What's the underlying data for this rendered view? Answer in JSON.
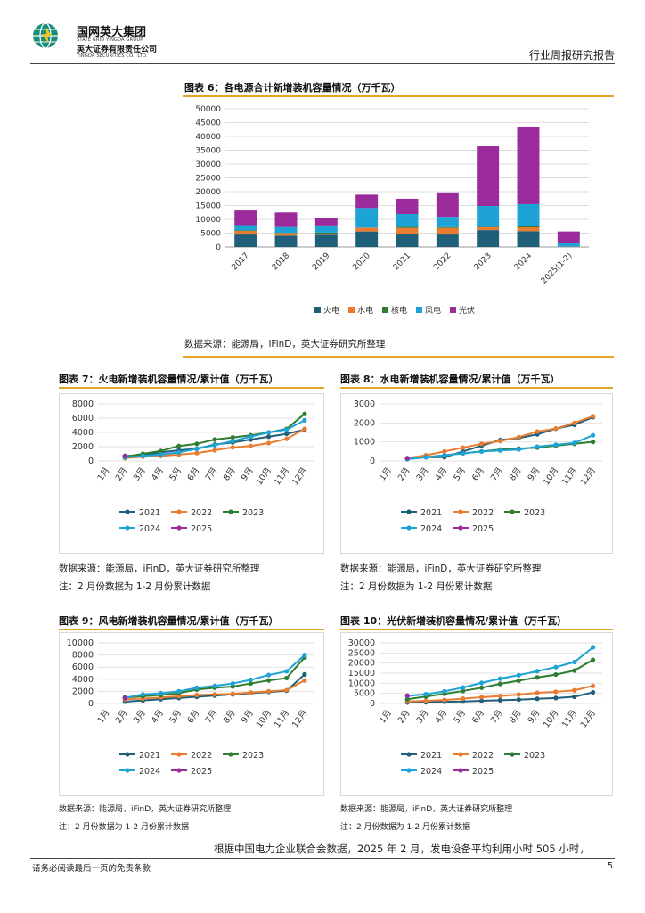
{
  "header": {
    "logo_cn": "国网英大集团",
    "logo_en": "STATE GRID YINGDA GROUP",
    "company_cn": "英大证券有限责任公司",
    "company_en": "YINGDA SECURITIES CO., LTD.",
    "report_type": "行业周报研究报告"
  },
  "figure6": {
    "title": "图表 6：各电源合计新增装机容量情况（万千瓦）",
    "source": "数据来源：能源局，iFinD，英大证券研究所整理"
  },
  "figure7": {
    "title": "图表 7：火电新增装机容量情况/累计值（万千瓦）",
    "source": "数据来源：能源局，iFinD，英大证券研究所整理",
    "note": "注：2 月份数据为 1-2 月份累计数据"
  },
  "figure8": {
    "title": "图表 8：水电新增装机容量情况/累计值（万千瓦）",
    "source": "数据来源：能源局，iFinD，英大证券研究所整理",
    "note": "注：2 月份数据为 1-2 月份累计数据"
  },
  "figure9": {
    "title": "图表 9：风电新增装机容量情况/累计值（万千瓦）",
    "source": "数据来源：能源局，iFinD，英大证券研究所整理",
    "note": "注：2 月份数据为 1-2 月份累计数据"
  },
  "figure10": {
    "title": "图表 10：光伏新增装机容量情况/累计值（万千瓦）",
    "source": "数据来源：能源局，iFinD，英大证券研究所整理",
    "note": "注：2 月份数据为 1-2 月份累计数据"
  },
  "body_text": "根据中国电力企业联合会数据，2025 年 2 月，发电设备平均利用小时 505 小时，",
  "footer": {
    "disclaimer": "请务必阅读最后一页的免责条款",
    "page_number": "5"
  },
  "chart_data": [
    {
      "id": "fig6",
      "type": "bar",
      "stacked": true,
      "categories": [
        "2017",
        "2018",
        "2019",
        "2020",
        "2021",
        "2022",
        "2023",
        "2024",
        "2025(1-2)"
      ],
      "series": [
        {
          "name": "火电",
          "color": "#1f5f7a",
          "values": [
            4500,
            4100,
            4400,
            5600,
            4600,
            4500,
            6100,
            5700,
            0
          ]
        },
        {
          "name": "水电",
          "color": "#e97c30",
          "values": [
            1300,
            900,
            400,
            1300,
            2300,
            2400,
            1000,
            1400,
            100
          ]
        },
        {
          "name": "核电",
          "color": "#2e7d32",
          "values": [
            200,
            90,
            400,
            110,
            340,
            230,
            140,
            400,
            0
          ]
        },
        {
          "name": "风电",
          "color": "#1ea3d6",
          "values": [
            1900,
            2100,
            2600,
            7100,
            4700,
            3800,
            7600,
            8000,
            1500
          ]
        },
        {
          "name": "光伏",
          "color": "#9b2b9b",
          "values": [
            5300,
            5300,
            2700,
            4800,
            5500,
            8800,
            21600,
            27800,
            4000
          ]
        }
      ],
      "ylim": [
        0,
        50000
      ],
      "yticks": [
        0,
        5000,
        10000,
        15000,
        20000,
        25000,
        30000,
        35000,
        40000,
        45000,
        50000
      ]
    },
    {
      "id": "fig7",
      "type": "line",
      "categories": [
        "1月",
        "2月",
        "3月",
        "4月",
        "5月",
        "6月",
        "7月",
        "8月",
        "9月",
        "10月",
        "11月",
        "12月"
      ],
      "ylim": [
        0,
        8000
      ],
      "yticks": [
        0,
        2000,
        4000,
        6000,
        8000
      ],
      "series": [
        {
          "name": "2021",
          "color": "#1f5f7a",
          "values": [
            null,
            700,
            800,
            1200,
            1500,
            1700,
            2300,
            2600,
            3000,
            3400,
            3800,
            4400
          ]
        },
        {
          "name": "2022",
          "color": "#e97c30",
          "values": [
            null,
            400,
            600,
            700,
            900,
            1100,
            1500,
            1900,
            2100,
            2500,
            3100,
            4500
          ]
        },
        {
          "name": "2023",
          "color": "#2e7d32",
          "values": [
            null,
            600,
            1000,
            1400,
            2100,
            2400,
            3000,
            3300,
            3600,
            4000,
            4500,
            6600
          ]
        },
        {
          "name": "2024",
          "color": "#1ea3d6",
          "values": [
            null,
            500,
            700,
            900,
            1200,
            1700,
            2200,
            2800,
            3400,
            4000,
            4400,
            5700
          ]
        },
        {
          "name": "2025",
          "color": "#9b2b9b",
          "values": [
            null,
            700,
            null,
            null,
            null,
            null,
            null,
            null,
            null,
            null,
            null,
            null
          ]
        }
      ]
    },
    {
      "id": "fig8",
      "type": "line",
      "categories": [
        "1月",
        "2月",
        "3月",
        "4月",
        "5月",
        "6月",
        "7月",
        "8月",
        "9月",
        "10月",
        "11月",
        "12月"
      ],
      "ylim": [
        0,
        3000
      ],
      "yticks": [
        0,
        1000,
        2000,
        3000
      ],
      "series": [
        {
          "name": "2021",
          "color": "#1f5f7a",
          "values": [
            null,
            100,
            200,
            200,
            500,
            800,
            1100,
            1200,
            1400,
            1700,
            1900,
            2300
          ]
        },
        {
          "name": "2022",
          "color": "#e97c30",
          "values": [
            null,
            150,
            300,
            500,
            700,
            900,
            1050,
            1250,
            1550,
            1700,
            2000,
            2350
          ]
        },
        {
          "name": "2023",
          "color": "#2e7d32",
          "values": [
            null,
            100,
            200,
            300,
            400,
            500,
            600,
            650,
            700,
            800,
            900,
            1000
          ]
        },
        {
          "name": "2024",
          "color": "#1ea3d6",
          "values": [
            null,
            100,
            200,
            300,
            400,
            500,
            550,
            600,
            750,
            850,
            950,
            1350
          ]
        },
        {
          "name": "2025",
          "color": "#9b2b9b",
          "values": [
            null,
            150,
            null,
            null,
            null,
            null,
            null,
            null,
            null,
            null,
            null,
            null
          ]
        }
      ]
    },
    {
      "id": "fig9",
      "type": "line",
      "categories": [
        "1月",
        "2月",
        "3月",
        "4月",
        "5月",
        "6月",
        "7月",
        "8月",
        "9月",
        "10月",
        "11月",
        "12月"
      ],
      "ylim": [
        0,
        10000
      ],
      "yticks": [
        0,
        2000,
        4000,
        6000,
        8000,
        10000
      ],
      "series": [
        {
          "name": "2021",
          "color": "#1f5f7a",
          "values": [
            null,
            300,
            500,
            700,
            900,
            1100,
            1300,
            1500,
            1700,
            1900,
            2100,
            4800
          ]
        },
        {
          "name": "2022",
          "color": "#e97c30",
          "values": [
            null,
            700,
            800,
            1000,
            1200,
            1400,
            1500,
            1600,
            1800,
            2000,
            2200,
            3800
          ]
        },
        {
          "name": "2023",
          "color": "#2e7d32",
          "values": [
            null,
            1000,
            1200,
            1400,
            1700,
            2300,
            2600,
            2800,
            3300,
            3800,
            4200,
            7600
          ]
        },
        {
          "name": "2024",
          "color": "#1ea3d6",
          "values": [
            null,
            900,
            1500,
            1700,
            2000,
            2600,
            2900,
            3300,
            3900,
            4700,
            5300,
            8000
          ]
        },
        {
          "name": "2025",
          "color": "#9b2b9b",
          "values": [
            null,
            900,
            null,
            null,
            null,
            null,
            null,
            null,
            null,
            null,
            null,
            null
          ]
        }
      ]
    },
    {
      "id": "fig10",
      "type": "line",
      "categories": [
        "1月",
        "2月",
        "3月",
        "4月",
        "5月",
        "6月",
        "7月",
        "8月",
        "9月",
        "10月",
        "11月",
        "12月"
      ],
      "ylim": [
        0,
        30000
      ],
      "yticks": [
        0,
        5000,
        10000,
        15000,
        20000,
        25000,
        30000
      ],
      "series": [
        {
          "name": "2021",
          "color": "#1f5f7a",
          "values": [
            null,
            500,
            600,
            800,
            1000,
            1300,
            1600,
            1900,
            2300,
            2700,
            3300,
            5500
          ]
        },
        {
          "name": "2022",
          "color": "#e97c30",
          "values": [
            null,
            1000,
            1300,
            1700,
            2400,
            3100,
            3700,
            4400,
            5300,
            5800,
            6500,
            8700
          ]
        },
        {
          "name": "2023",
          "color": "#2e7d32",
          "values": [
            null,
            2100,
            3400,
            4800,
            6200,
            7800,
            9700,
            11300,
            12900,
            14300,
            16300,
            21600
          ]
        },
        {
          "name": "2024",
          "color": "#1ea3d6",
          "values": [
            null,
            3700,
            4600,
            6000,
            7900,
            10200,
            12300,
            14000,
            16000,
            18000,
            20500,
            27800
          ]
        },
        {
          "name": "2025",
          "color": "#9b2b9b",
          "values": [
            null,
            3900,
            null,
            null,
            null,
            null,
            null,
            null,
            null,
            null,
            null,
            null
          ]
        }
      ]
    }
  ]
}
